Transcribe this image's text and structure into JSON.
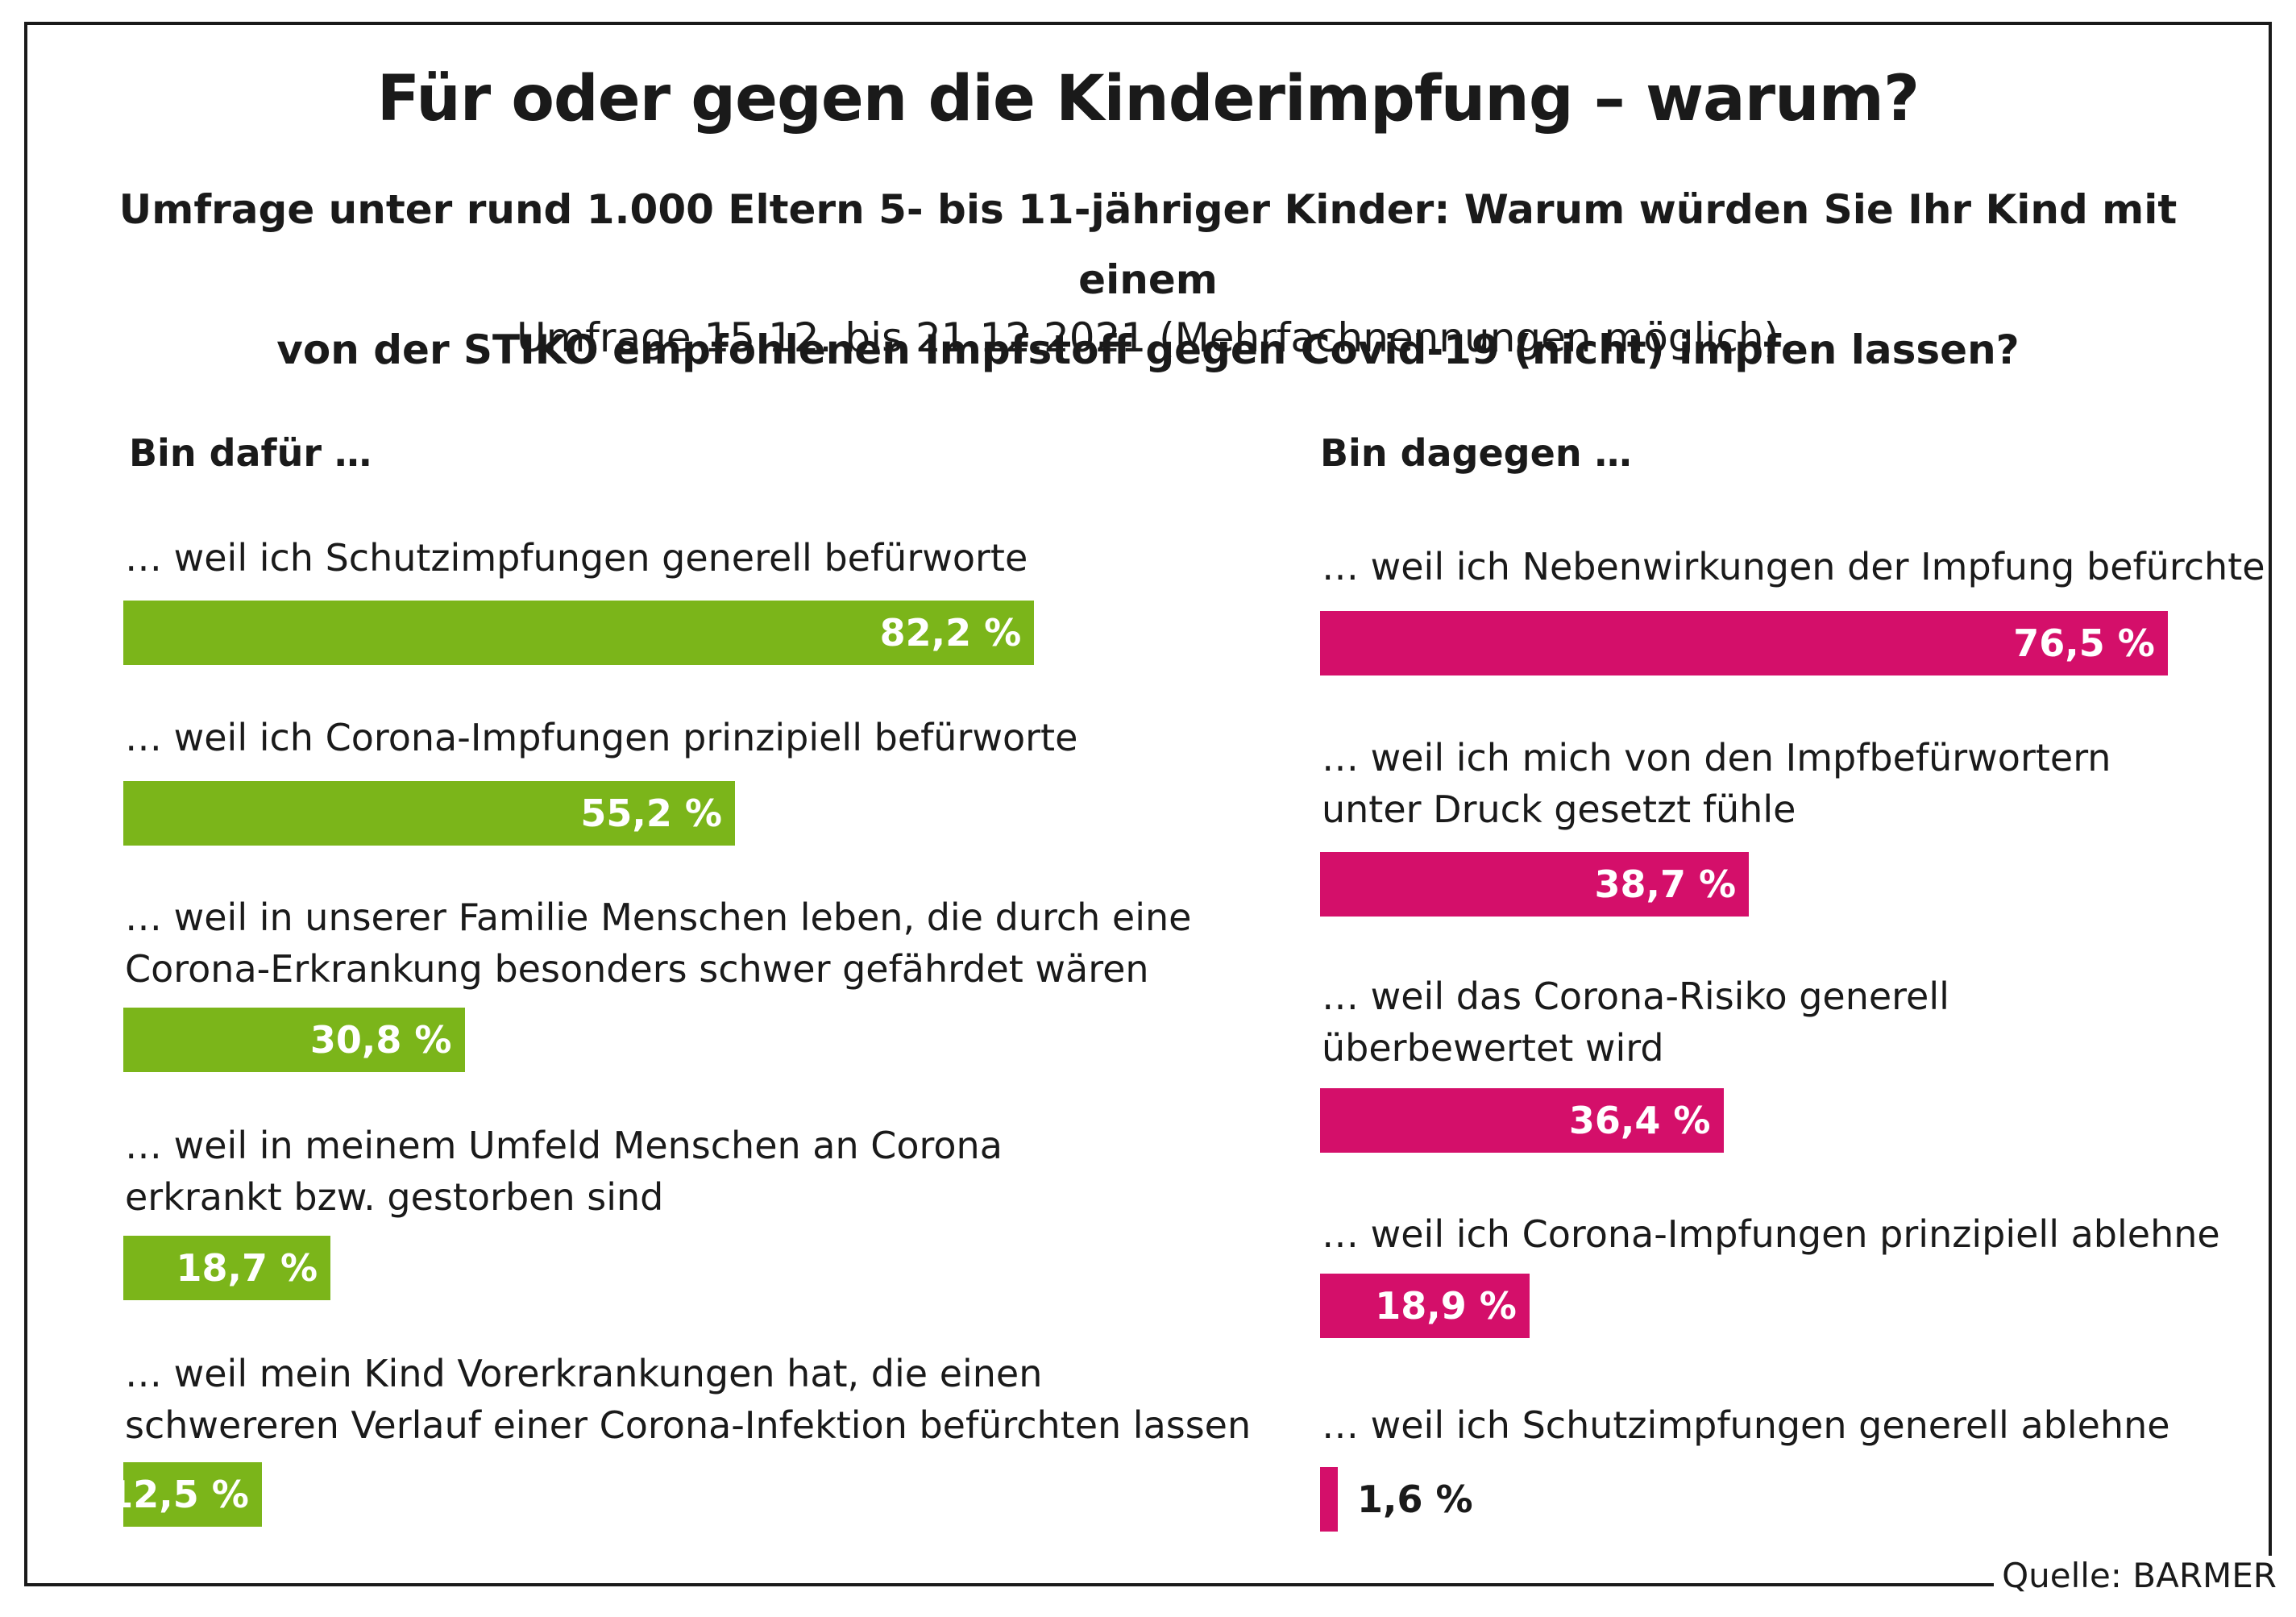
{
  "title": "Für oder gegen die Kinderimpfung – warum?",
  "subtitle": "Umfrage unter rund 1.000 Eltern 5- bis 11-jähriger Kinder: Warum würden Sie Ihr Kind mit einem\nvon der STIKO empfohlenen Impfstoff gegen Covid-19 (nicht) impfen lassen?",
  "note": "Umfrage 15.12. bis 21.12.2021 (Mehrfachnennungen möglich)",
  "source": "Quelle: BARMER",
  "colors": {
    "pro": "#7bb51a",
    "contra": "#d40f6a",
    "text": "#1a1a1a"
  },
  "chart_data": [
    {
      "type": "bar",
      "orientation": "horizontal",
      "title": "Bin dafür …",
      "categories": [
        "… weil ich Schutzimpfungen generell befürworte",
        "… weil ich Corona-Impfungen prinzipiell befürworte",
        "… weil in unserer Familie Menschen leben, die durch eine\nCorona-Erkrankung besonders schwer gefährdet wären",
        "… weil in meinem Umfeld Menschen an Corona\nerkrankt bzw. gestorben sind",
        "… weil mein Kind Vorerkrankungen hat, die einen\nschwereren Verlauf einer Corona-Infektion befürchten lassen"
      ],
      "values": [
        82.2,
        55.2,
        30.8,
        18.7,
        12.5
      ],
      "value_labels": [
        "82,2 %",
        "55,2 %",
        "30,8 %",
        "18,7 %",
        "12,5 %"
      ],
      "unit": "%",
      "color": "#7bb51a"
    },
    {
      "type": "bar",
      "orientation": "horizontal",
      "title": "Bin dagegen …",
      "categories": [
        "… weil ich Nebenwirkungen der Impfung befürchte",
        "… weil ich mich von den Impfbefürwortern\nunter Druck gesetzt fühle",
        "… weil das Corona-Risiko generell\nüberbewertet wird",
        "… weil ich Corona-Impfungen prinzipiell ablehne",
        "… weil ich Schutzimpfungen generell ablehne"
      ],
      "values": [
        76.5,
        38.7,
        36.4,
        18.9,
        1.6
      ],
      "value_labels": [
        "76,5 %",
        "38,7 %",
        "36,4 %",
        "18,9 %",
        "1,6 %"
      ],
      "unit": "%",
      "color": "#d40f6a"
    }
  ]
}
